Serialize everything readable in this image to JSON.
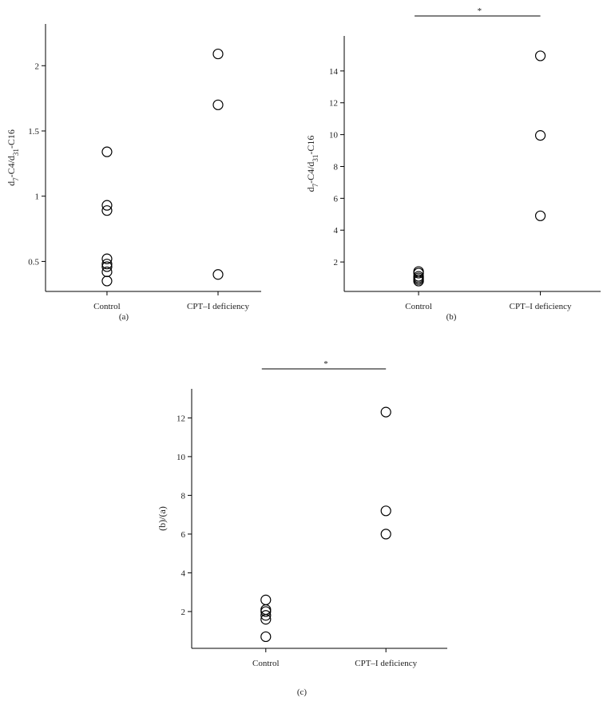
{
  "chart_data": [
    {
      "type": "scatter",
      "panel_label": "(a)",
      "ylabel": [
        "d",
        "7",
        "-C4/d",
        "31",
        "-C16"
      ],
      "categories": [
        "Control",
        "CPT–I deficiency"
      ],
      "values": [
        [
          1.34,
          0.93,
          0.89,
          0.52,
          0.48,
          0.46,
          0.42,
          0.35
        ],
        [
          2.09,
          1.7,
          0.4
        ]
      ],
      "color": "#000000",
      "ylim": [
        0.27,
        2.32
      ],
      "yticks": [
        0.5,
        1.0,
        1.5,
        2.0
      ]
    },
    {
      "type": "scatter",
      "panel_label": "(b)",
      "ylabel": [
        "d",
        "7",
        "-C4/d",
        "31",
        "-C16"
      ],
      "categories": [
        "Control",
        "CPT–I deficiency"
      ],
      "values": [
        [
          1.4,
          1.3,
          1.1,
          1.0,
          0.9,
          0.8
        ],
        [
          14.95,
          9.95,
          4.9
        ]
      ],
      "color": "#000000",
      "ylim": [
        0.15,
        16.2
      ],
      "yticks": [
        2,
        4,
        6,
        8,
        10,
        12,
        14
      ],
      "significance": "*"
    },
    {
      "type": "scatter",
      "panel_label": "(c)",
      "ylabel": [
        "(b)/(a)"
      ],
      "categories": [
        "Control",
        "CPT–I deficiency"
      ],
      "values": [
        [
          2.6,
          2.1,
          2.0,
          1.8,
          1.6,
          0.7
        ],
        [
          12.3,
          7.2,
          6.0
        ]
      ],
      "color": "#000000",
      "ylim": [
        0.1,
        13.5
      ],
      "yticks": [
        2,
        4,
        6,
        8,
        10,
        12
      ],
      "significance": "*"
    }
  ]
}
